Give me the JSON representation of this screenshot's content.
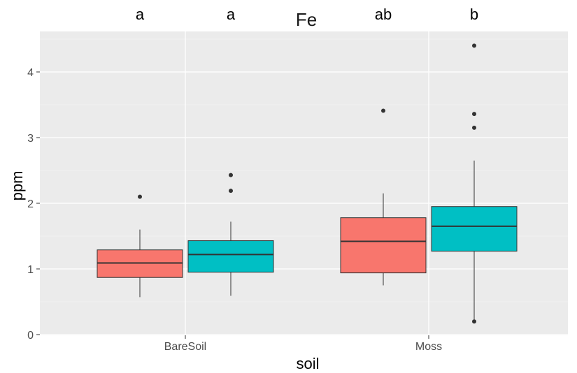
{
  "chart_data": {
    "type": "boxplot",
    "title": "Fe",
    "xlabel": "soil",
    "ylabel": "ppm",
    "ylim": [
      0,
      4.6
    ],
    "yticks": [
      0,
      1,
      2,
      3,
      4
    ],
    "categories": [
      "BareSoil",
      "Moss"
    ],
    "grid": true,
    "boxes": [
      {
        "category": "BareSoil",
        "slot": 0,
        "color": "#F8766D",
        "sig": "a",
        "q1": 0.87,
        "median": 1.09,
        "q3": 1.29,
        "whisker_low": 0.57,
        "whisker_high": 1.6,
        "outliers": [
          2.1
        ]
      },
      {
        "category": "BareSoil",
        "slot": 1,
        "color": "#00BFC4",
        "sig": "a",
        "q1": 0.95,
        "median": 1.22,
        "q3": 1.43,
        "whisker_low": 0.59,
        "whisker_high": 1.72,
        "outliers": [
          2.19,
          2.43
        ]
      },
      {
        "category": "Moss",
        "slot": 0,
        "color": "#F8766D",
        "sig": "ab",
        "q1": 0.94,
        "median": 1.42,
        "q3": 1.78,
        "whisker_low": 0.75,
        "whisker_high": 2.15,
        "outliers": [
          3.41
        ]
      },
      {
        "category": "Moss",
        "slot": 1,
        "color": "#00BFC4",
        "sig": "b",
        "q1": 1.27,
        "median": 1.65,
        "q3": 1.95,
        "whisker_low": 0.2,
        "whisker_high": 2.65,
        "outliers": [
          0.2,
          3.15,
          3.36,
          4.4
        ]
      }
    ]
  }
}
